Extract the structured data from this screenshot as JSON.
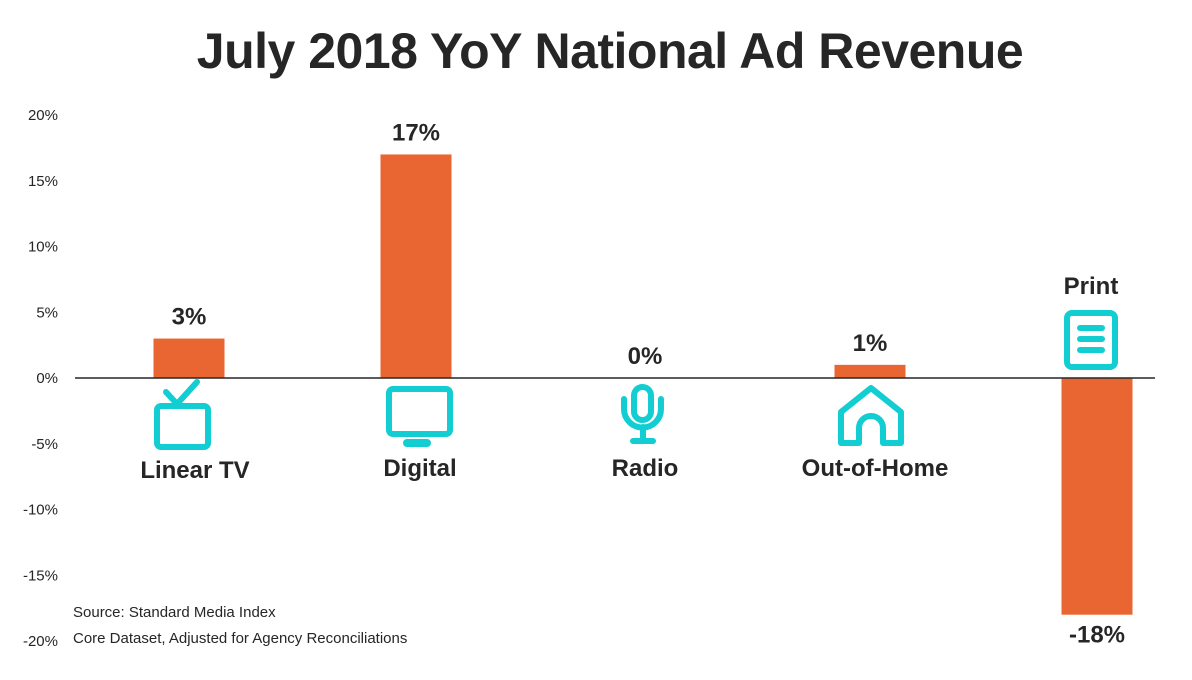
{
  "chart_data": {
    "type": "bar",
    "title": "July 2018 YoY National Ad Revenue",
    "categories": [
      "Linear TV",
      "Digital",
      "Radio",
      "Out-of-Home",
      "Print"
    ],
    "values": [
      3,
      17,
      0,
      1,
      -18
    ],
    "value_labels": [
      "3%",
      "17%",
      "0%",
      "1%",
      "-18%"
    ],
    "icons": [
      "tv-icon",
      "monitor-icon",
      "microphone-icon",
      "house-icon",
      "document-icon"
    ],
    "ylim": [
      -20,
      20
    ],
    "yticks": [
      20,
      15,
      10,
      5,
      0,
      -5,
      -10,
      -15,
      -20
    ],
    "ytick_labels": [
      "20%",
      "15%",
      "10%",
      "5%",
      "0%",
      "-5%",
      "-10%",
      "-15%",
      "-20%"
    ],
    "grid": false,
    "xlabel": "",
    "ylabel": "",
    "colors": {
      "bar": "#E96531",
      "icon": "#12CDD1",
      "text": "#262626"
    }
  },
  "source": {
    "line1": "Source: Standard Media Index",
    "line2": "Core Dataset, Adjusted for Agency Reconciliations"
  }
}
